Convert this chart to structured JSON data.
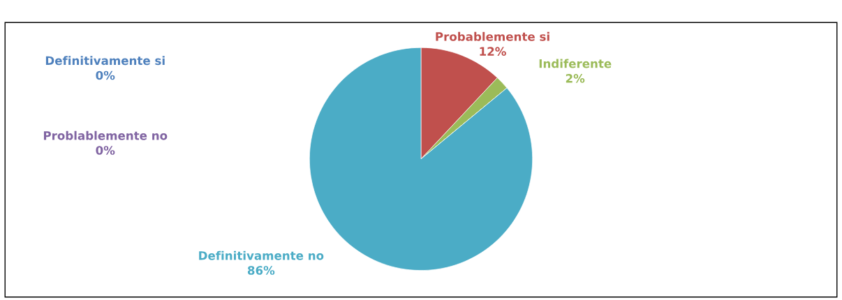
{
  "chart_data": {
    "type": "pie",
    "categories": [
      "Definitivamente si",
      "Probablemente si",
      "Indiferente",
      "Problablemente no",
      "Definitivamente no"
    ],
    "values": [
      0,
      12,
      2,
      0,
      86
    ],
    "colors": [
      "#4f81bd",
      "#c0504d",
      "#9bbb59",
      "#8064a2",
      "#4bacc6"
    ],
    "value_labels": [
      "0%",
      "12%",
      "2%",
      "0%",
      "86%"
    ]
  }
}
